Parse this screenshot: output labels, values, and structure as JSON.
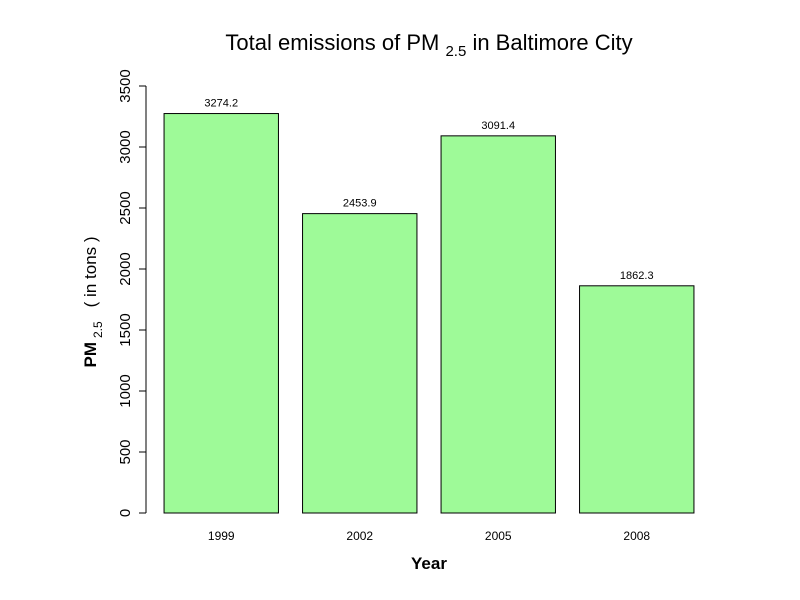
{
  "chart_data": {
    "type": "bar",
    "title": {
      "prefix": "Total emissions of PM ",
      "subscript": "2.5",
      "suffix": " in Baltimore City"
    },
    "xlabel": "Year",
    "ylabel": {
      "main": "PM",
      "subscript": "2.5",
      "suffix": "( in tons )"
    },
    "categories": [
      "1999",
      "2002",
      "2005",
      "2008"
    ],
    "values": [
      3274.2,
      2453.9,
      3091.4,
      1862.3
    ],
    "value_labels": [
      "3274.2",
      "2453.9",
      "3091.4",
      "1862.3"
    ],
    "ylim": [
      0,
      3500
    ],
    "yticks": [
      0,
      500,
      1000,
      1500,
      2000,
      2500,
      3000,
      3500
    ],
    "bar_color": "#9efa98",
    "grid": false,
    "legend": "none"
  }
}
